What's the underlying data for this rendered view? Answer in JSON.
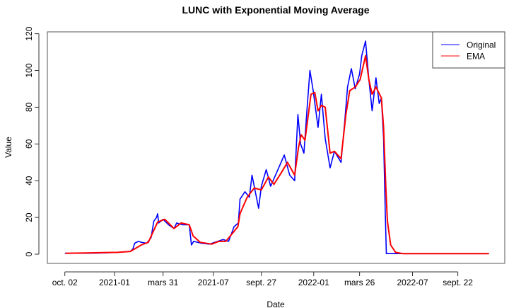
{
  "chart_data": {
    "type": "line",
    "title": "LUNC with Exponential Moving Average",
    "xlabel": "Date",
    "ylabel": "Value",
    "x_units": "days since 2020-10-02",
    "xlim": [
      -32,
      806
    ],
    "ylim": [
      -5,
      121
    ],
    "grid": false,
    "legend_position": "top-right",
    "x_ticks": [
      {
        "value": 0,
        "label": "oct. 02"
      },
      {
        "value": 91,
        "label": "2021-01"
      },
      {
        "value": 180,
        "label": "mars 31"
      },
      {
        "value": 272,
        "label": "2021-07"
      },
      {
        "value": 360,
        "label": "sept. 27"
      },
      {
        "value": 456,
        "label": "2022-01"
      },
      {
        "value": 540,
        "label": "mars 26"
      },
      {
        "value": 637,
        "label": "2022-07"
      },
      {
        "value": 720,
        "label": "sept. 22"
      }
    ],
    "y_ticks": [
      0,
      20,
      40,
      60,
      80,
      100,
      120
    ],
    "series": [
      {
        "name": "Original",
        "color": "#0000ff",
        "points": [
          [
            0,
            0.5
          ],
          [
            60,
            0.6
          ],
          [
            97,
            1
          ],
          [
            120,
            1.5
          ],
          [
            125,
            3
          ],
          [
            128,
            6
          ],
          [
            135,
            7
          ],
          [
            140,
            6.5
          ],
          [
            150,
            6
          ],
          [
            158,
            9
          ],
          [
            163,
            18
          ],
          [
            168,
            20
          ],
          [
            170,
            22
          ],
          [
            172,
            17
          ],
          [
            180,
            19
          ],
          [
            190,
            16
          ],
          [
            200,
            14
          ],
          [
            205,
            17
          ],
          [
            215,
            16
          ],
          [
            228,
            16
          ],
          [
            232,
            5
          ],
          [
            236,
            7
          ],
          [
            250,
            6
          ],
          [
            265,
            5.5
          ],
          [
            280,
            7
          ],
          [
            290,
            8
          ],
          [
            300,
            7
          ],
          [
            310,
            15
          ],
          [
            318,
            17
          ],
          [
            321,
            30
          ],
          [
            330,
            34
          ],
          [
            338,
            31
          ],
          [
            343,
            43
          ],
          [
            347,
            37
          ],
          [
            355,
            25
          ],
          [
            360,
            37
          ],
          [
            369,
            46
          ],
          [
            377,
            37
          ],
          [
            386,
            43
          ],
          [
            402,
            54
          ],
          [
            412,
            43
          ],
          [
            421,
            40
          ],
          [
            427,
            76
          ],
          [
            432,
            60
          ],
          [
            438,
            55
          ],
          [
            444,
            80
          ],
          [
            449,
            100
          ],
          [
            455,
            89
          ],
          [
            464,
            69
          ],
          [
            470,
            87
          ],
          [
            477,
            63
          ],
          [
            486,
            47
          ],
          [
            494,
            56
          ],
          [
            506,
            50
          ],
          [
            513,
            73
          ],
          [
            518,
            91
          ],
          [
            525,
            101
          ],
          [
            532,
            90
          ],
          [
            540,
            98
          ],
          [
            544,
            108
          ],
          [
            551,
            116
          ],
          [
            557,
            95
          ],
          [
            563,
            78
          ],
          [
            570,
            96
          ],
          [
            576,
            82
          ],
          [
            580,
            85
          ],
          [
            584,
            63
          ],
          [
            587,
            24
          ],
          [
            589,
            0.3
          ],
          [
            777,
            0.3
          ]
        ]
      },
      {
        "name": "EMA",
        "color": "#ff0000",
        "points": [
          [
            1,
            0.5
          ],
          [
            97,
            1
          ],
          [
            120,
            1.5
          ],
          [
            140,
            5
          ],
          [
            153,
            6.5
          ],
          [
            170,
            17.5
          ],
          [
            183,
            19
          ],
          [
            200,
            14
          ],
          [
            213,
            17
          ],
          [
            228,
            16
          ],
          [
            235,
            10
          ],
          [
            248,
            6.5
          ],
          [
            269,
            5.5
          ],
          [
            282,
            7
          ],
          [
            295,
            7
          ],
          [
            317,
            15
          ],
          [
            321,
            22
          ],
          [
            334,
            31
          ],
          [
            347,
            36
          ],
          [
            360,
            35
          ],
          [
            373,
            42
          ],
          [
            383,
            38
          ],
          [
            396,
            44
          ],
          [
            408,
            50
          ],
          [
            421,
            43
          ],
          [
            428,
            58
          ],
          [
            433,
            65
          ],
          [
            440,
            62
          ],
          [
            451,
            87
          ],
          [
            458,
            88
          ],
          [
            464,
            78
          ],
          [
            470,
            81
          ],
          [
            477,
            80
          ],
          [
            486,
            55
          ],
          [
            494,
            56
          ],
          [
            506,
            52
          ],
          [
            515,
            76
          ],
          [
            522,
            89
          ],
          [
            532,
            91
          ],
          [
            541,
            95
          ],
          [
            551,
            108
          ],
          [
            557,
            95
          ],
          [
            563,
            87
          ],
          [
            570,
            91
          ],
          [
            580,
            85
          ],
          [
            584,
            69
          ],
          [
            588,
            37
          ],
          [
            591,
            18
          ],
          [
            597,
            5
          ],
          [
            606,
            1
          ],
          [
            619,
            0.3
          ],
          [
            777,
            0.3
          ]
        ]
      }
    ]
  }
}
